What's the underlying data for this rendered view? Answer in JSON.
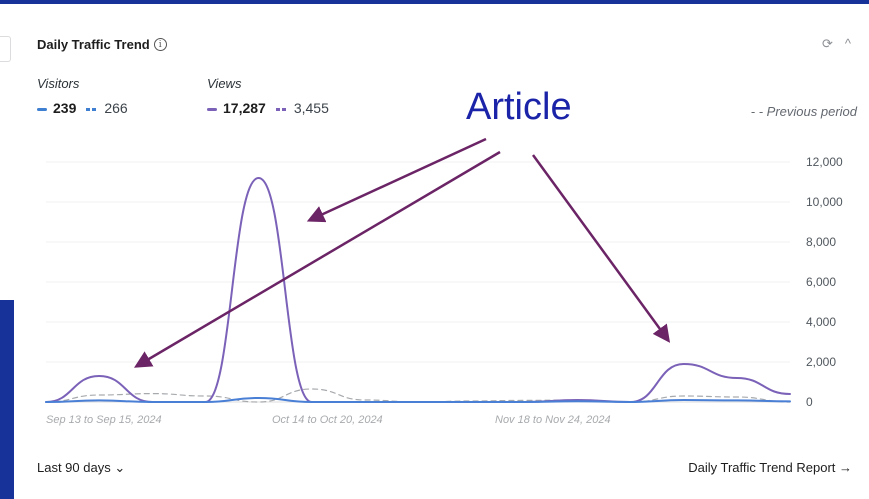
{
  "card": {
    "title": "Daily Traffic Trend",
    "info_glyph": "i",
    "refresh_glyph": "⟳",
    "collapse_glyph": "^"
  },
  "metrics": {
    "visitors": {
      "label": "Visitors",
      "current": "239",
      "previous": "266",
      "color": "#3f7fd1"
    },
    "views": {
      "label": "Views",
      "current": "17,287",
      "previous": "3,455",
      "color": "#7b62b8"
    },
    "previous_period_label": "- - Previous period"
  },
  "annotation": {
    "text": "Article",
    "color": "#1b24a8",
    "arrow_color": "#6b2466"
  },
  "chart_data": {
    "type": "line",
    "ylim": [
      0,
      12000
    ],
    "y_ticks": [
      "12,000",
      "10,000",
      "8,000",
      "6,000",
      "4,000",
      "2,000",
      "0"
    ],
    "x_tick_labels": [
      "Sep 13 to Sep 15, 2024",
      "Oct 14 to Oct 20, 2024",
      "Nov 18 to Nov 24, 2024"
    ],
    "x_count": 15,
    "series": [
      {
        "name": "Views",
        "style": "solid",
        "color": "#7b62b8",
        "values": [
          0,
          1300,
          0,
          0,
          11200,
          0,
          0,
          0,
          0,
          0,
          100,
          0,
          1900,
          1200,
          400
        ]
      },
      {
        "name": "Visitors",
        "style": "solid",
        "color": "#4a7fd6",
        "values": [
          0,
          80,
          0,
          0,
          200,
          0,
          0,
          0,
          0,
          0,
          40,
          0,
          100,
          80,
          30
        ]
      },
      {
        "name": "Views (previous period)",
        "style": "dashed",
        "color": "#a7aaad",
        "values": [
          0,
          350,
          420,
          300,
          0,
          650,
          100,
          0,
          50,
          80,
          100,
          0,
          300,
          250,
          0
        ]
      }
    ]
  },
  "footer": {
    "range_label": "Last 90 days",
    "range_chevron": "⌄",
    "report_link": "Daily Traffic Trend Report →"
  }
}
